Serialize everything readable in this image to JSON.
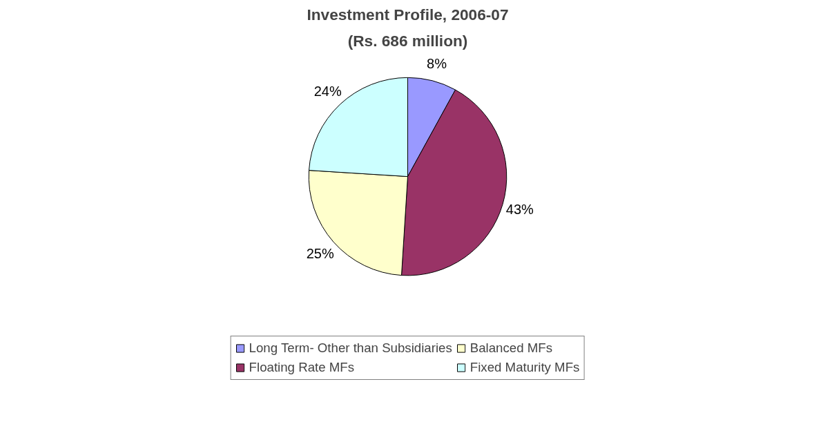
{
  "chart_data": {
    "type": "pie",
    "title": "Investment Profile, 2006-07",
    "subtitle": "(Rs. 686 million)",
    "categories": [
      "Long Term- Other than Subsidiaries",
      "Floating Rate MFs",
      "Balanced MFs",
      "Fixed Maturity MFs"
    ],
    "values": [
      8,
      43,
      25,
      24
    ],
    "colors": [
      "#9999ff",
      "#993366",
      "#ffffcc",
      "#ccffff"
    ],
    "value_labels": [
      "8%",
      "43%",
      "25%",
      "24%"
    ],
    "legend": "bottom"
  }
}
